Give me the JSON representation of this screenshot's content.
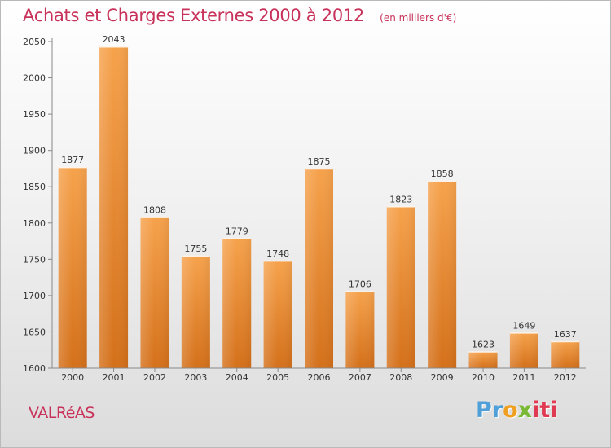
{
  "header": {
    "title": "Achats et Charges Externes 2000 à 2012",
    "unit_note": "(en milliers d'€)"
  },
  "footer": {
    "place": "VALRéAS",
    "logo_text": "Proxiti"
  },
  "colors": {
    "title": "#c8325a",
    "bar_top": "#f6a24c",
    "bar_bottom": "#d4701a",
    "logo_blue": "#4f9fd8",
    "logo_orange": "#f0a020",
    "logo_green": "#7ab935",
    "logo_red": "#e03a52"
  },
  "chart_data": {
    "type": "bar",
    "title": "Achats et Charges Externes 2000 à 2012",
    "subtitle": "(en milliers d'€)",
    "xlabel": "",
    "ylabel": "",
    "categories": [
      "2000",
      "2001",
      "2002",
      "2003",
      "2004",
      "2005",
      "2006",
      "2007",
      "2008",
      "2009",
      "2010",
      "2011",
      "2012"
    ],
    "values": [
      1877,
      2043,
      1808,
      1755,
      1779,
      1748,
      1875,
      1706,
      1823,
      1858,
      1623,
      1649,
      1637
    ],
    "ylim": [
      1600,
      2050
    ],
    "yticks": [
      1600,
      1650,
      1700,
      1750,
      1800,
      1850,
      1900,
      1950,
      2000,
      2050
    ],
    "grid": false,
    "data_labels": true
  }
}
